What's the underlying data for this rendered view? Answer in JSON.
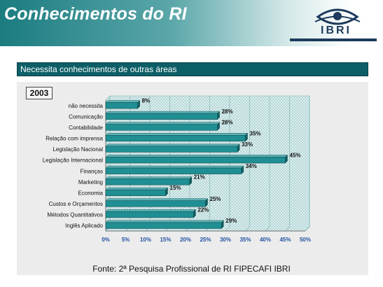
{
  "header": {
    "title": "Conhecimentos do RI",
    "logo_text": "IBRI"
  },
  "subtitle": "Necessita conhecimentos de outras áreas",
  "year": "2003",
  "source": "Fonte: 2ª Pesquisa Profissional de RI FIPECAFI IBRI",
  "colors": {
    "accent": "#1b7c80",
    "bar": "#1f8f93",
    "plot_fill": "#d9ecec"
  },
  "chart_data": {
    "type": "bar",
    "orientation": "horizontal",
    "title": "",
    "xlabel": "",
    "ylabel": "",
    "categories": [
      "não necessita",
      "Comunicação",
      "Contabilidade",
      "Relação com imprensa",
      "Legislação Nacional",
      "Legislação Internacional",
      "Finanças",
      "Marketing",
      "Economia",
      "Custos e Orçamentos",
      "Métodos Quantitativos",
      "Inglês Aplicado"
    ],
    "values": [
      8,
      28,
      28,
      35,
      33,
      45,
      34,
      21,
      15,
      25,
      22,
      29
    ],
    "value_labels": [
      "8%",
      "28%",
      "28%",
      "35%",
      "33%",
      "45%",
      "34%",
      "21%",
      "15%",
      "25%",
      "22%",
      "29%"
    ],
    "xlim": [
      0,
      50
    ],
    "ticks": [
      0,
      5,
      10,
      15,
      20,
      25,
      30,
      35,
      40,
      45,
      50
    ],
    "tick_labels": [
      "0%",
      "5%",
      "10%",
      "15%",
      "20%",
      "25%",
      "30%",
      "35%",
      "40%",
      "45%",
      "50%"
    ],
    "grid": true,
    "legend": "none"
  }
}
